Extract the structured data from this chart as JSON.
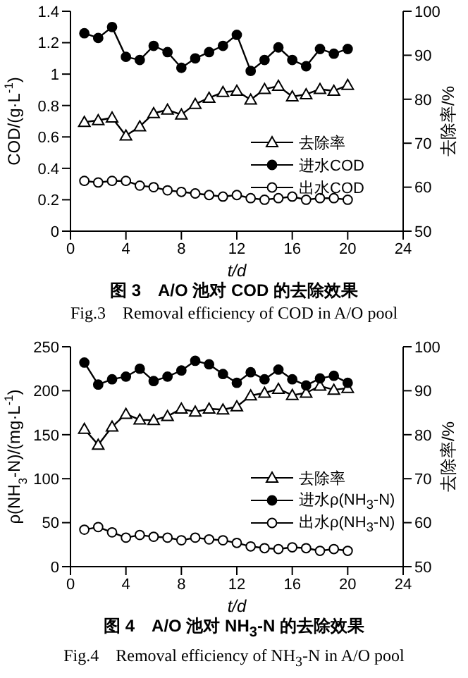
{
  "chart_data": [
    {
      "type": "line",
      "title": "图 3　A/O 池对 COD 的去除效果",
      "subtitle": "Fig.3　Removal efficiency of COD in A/O pool",
      "xlabel": "t/d",
      "ylabel": "COD/(g·L$^{-1}$)",
      "y2label": "去除率/%",
      "x": [
        1,
        2,
        3,
        4,
        5,
        6,
        7,
        8,
        9,
        10,
        11,
        12,
        13,
        14,
        15,
        16,
        17,
        18,
        19,
        20
      ],
      "series": [
        {
          "name": "去除率",
          "color": "#000000",
          "axis": "y2",
          "marker": "triangle-open",
          "values": [
            74.8,
            75.2,
            75.8,
            71.7,
            73.8,
            76.8,
            77.6,
            76.5,
            78.9,
            80.3,
            81.6,
            81.9,
            79.9,
            82.3,
            83.0,
            80.6,
            81.1,
            82.3,
            81.9,
            83.2
          ]
        },
        {
          "name": "进水COD",
          "color": "#000000",
          "marker": "circle",
          "values": [
            1.26,
            1.23,
            1.3,
            1.11,
            1.09,
            1.18,
            1.14,
            1.04,
            1.1,
            1.14,
            1.18,
            1.25,
            1.02,
            1.09,
            1.17,
            1.09,
            1.05,
            1.16,
            1.13,
            1.16
          ]
        },
        {
          "name": "出水COD",
          "color": "#000000",
          "marker": "circle-open",
          "values": [
            0.32,
            0.31,
            0.32,
            0.32,
            0.29,
            0.28,
            0.26,
            0.25,
            0.24,
            0.23,
            0.22,
            0.23,
            0.21,
            0.2,
            0.21,
            0.22,
            0.2,
            0.21,
            0.21,
            0.2
          ]
        }
      ],
      "xlim": [
        0,
        24
      ],
      "xticks": [
        0,
        4,
        8,
        12,
        16,
        20,
        24
      ],
      "ylim": [
        0,
        1.4
      ],
      "yticks": [
        0,
        0.2,
        0.4,
        0.6,
        0.8,
        1.0,
        1.2,
        1.4
      ],
      "y2lim": [
        50,
        100
      ],
      "y2ticks": [
        50,
        60,
        70,
        80,
        90,
        100
      ],
      "legend": "right",
      "grid": false,
      "line_style": "solid"
    },
    {
      "type": "line",
      "title": "图 4　A/O 池对 NH$_{3}$-N 的去除效果",
      "subtitle": "Fig.4　Removal efficiency of NH$_{3}$-N in A/O pool",
      "xlabel": "t/d",
      "ylabel": "ρ(NH$_{3}$-N)/(mg·L$^{-1}$)",
      "y2label": "去除率/%",
      "x": [
        1,
        2,
        3,
        4,
        5,
        6,
        7,
        8,
        9,
        10,
        11,
        12,
        13,
        14,
        15,
        16,
        17,
        18,
        19,
        20
      ],
      "series": [
        {
          "name": "去除率",
          "color": "#000000",
          "axis": "y2",
          "marker": "triangle-open",
          "values": [
            81.3,
            77.7,
            81.8,
            84.7,
            83.4,
            83.3,
            84.2,
            85.9,
            85.2,
            85.9,
            85.7,
            86.4,
            88.9,
            89.5,
            90.4,
            89.0,
            89.5,
            91.1,
            90.2,
            90.6
          ]
        },
        {
          "name": "进水ρ(NH$_{3}$-N)",
          "color": "#000000",
          "marker": "circle",
          "values": [
            232,
            207,
            213,
            216,
            225,
            211,
            216,
            223,
            234,
            230,
            219,
            209,
            221,
            213,
            224,
            213,
            206,
            214,
            217,
            209
          ]
        },
        {
          "name": "出水ρ(NH$_{3}$-N)",
          "color": "#000000",
          "marker": "circle-open",
          "values": [
            42,
            45,
            39,
            33,
            36,
            34,
            33,
            30,
            33,
            31,
            30,
            27,
            23,
            21,
            20,
            22,
            21,
            18,
            20,
            18
          ]
        }
      ],
      "xlim": [
        0,
        24
      ],
      "xticks": [
        0,
        4,
        8,
        12,
        16,
        20,
        24
      ],
      "ylim": [
        0,
        250
      ],
      "yticks": [
        0,
        50,
        100,
        150,
        200,
        250
      ],
      "y2lim": [
        50,
        100
      ],
      "y2ticks": [
        50,
        60,
        70,
        80,
        90,
        100
      ],
      "legend": "right",
      "grid": false,
      "line_style": "solid"
    }
  ]
}
